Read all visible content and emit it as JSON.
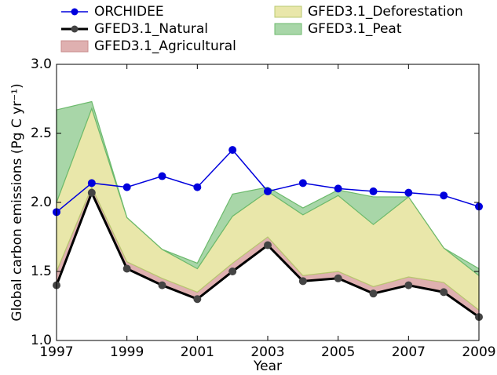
{
  "chart_data": {
    "type": "line",
    "xlabel": "Year",
    "ylabel": "Global carbon emissions (Pg C yr⁻¹)",
    "x": [
      1997,
      1998,
      1999,
      2000,
      2001,
      2002,
      2003,
      2004,
      2005,
      2006,
      2007,
      2008,
      2009
    ],
    "xlim": [
      1997,
      2009
    ],
    "xticks": [
      1997,
      1999,
      2001,
      2003,
      2005,
      2007,
      2009
    ],
    "ylim": [
      1,
      3
    ],
    "yticks": [
      {
        "value": 1,
        "label": "1.0"
      },
      1.5,
      {
        "value": 2,
        "label": "2.0"
      },
      2.5,
      {
        "value": 3,
        "label": "3.0"
      }
    ],
    "series": [
      {
        "name": "ORCHIDEE",
        "style": "line",
        "color": "#0000dd",
        "values": [
          1.93,
          2.14,
          2.11,
          2.19,
          2.11,
          2.38,
          2.08,
          2.14,
          2.1,
          2.08,
          2.07,
          2.05,
          1.97
        ]
      },
      {
        "name": "GFED3.1_Natural",
        "style": "line",
        "stack": true,
        "color": "#000000",
        "marker": "#444444",
        "values": [
          1.4,
          2.07,
          1.52,
          1.4,
          1.3,
          1.5,
          1.69,
          1.43,
          1.45,
          1.34,
          1.4,
          1.35,
          1.17
        ]
      },
      {
        "name": "GFED3.1_Agricultural",
        "style": "area",
        "stack": true,
        "color": "#dfb0b0",
        "edge": "#c98c8c",
        "values": [
          0.1,
          0.04,
          0.05,
          0.05,
          0.05,
          0.06,
          0.06,
          0.04,
          0.05,
          0.05,
          0.06,
          0.07,
          0.05
        ]
      },
      {
        "name": "GFED3.1_Deforestation",
        "style": "area",
        "stack": true,
        "color": "#e9e7aa",
        "edge": "#b8c870",
        "values": [
          0.5,
          0.57,
          0.32,
          0.21,
          0.17,
          0.34,
          0.33,
          0.44,
          0.55,
          0.45,
          0.58,
          0.25,
          0.25
        ]
      },
      {
        "name": "GFED3.1_Peat",
        "style": "area",
        "stack": true,
        "color": "#a8d6a8",
        "edge": "#6cba6c",
        "values": [
          0.67,
          0.05,
          0,
          0,
          0.04,
          0.16,
          0.03,
          0.05,
          0.04,
          0.2,
          0,
          0,
          0.05
        ]
      }
    ]
  }
}
